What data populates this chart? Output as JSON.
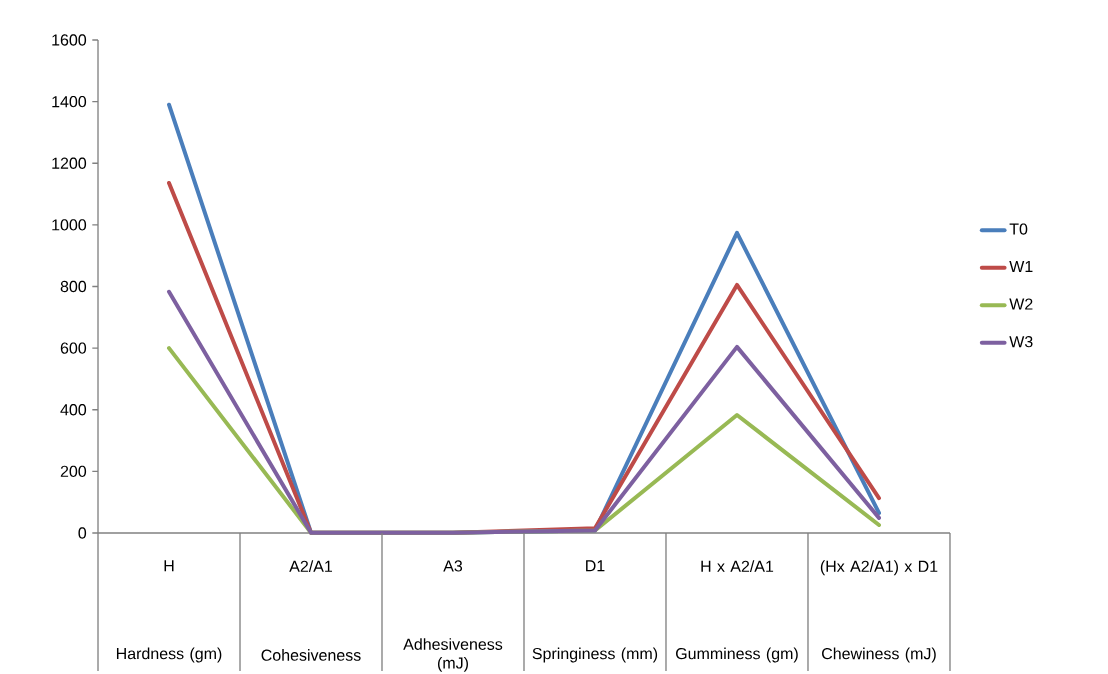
{
  "chart_data": {
    "type": "line",
    "categories": [
      "H",
      "A2/A1",
      "A3",
      "D1",
      "H x A2/A1",
      "(Hx A2/A1) x D1"
    ],
    "series": [
      {
        "name": "T0",
        "color": "#4a7ebb",
        "values": [
          1390,
          1,
          1,
          8,
          974,
          65
        ]
      },
      {
        "name": "W1",
        "color": "#be4b48",
        "values": [
          1136,
          1,
          1,
          15,
          805,
          113
        ]
      },
      {
        "name": "W2",
        "color": "#98b954",
        "values": [
          600,
          1,
          1,
          8,
          383,
          26
        ]
      },
      {
        "name": "W3",
        "color": "#7d60a0",
        "values": [
          783,
          1,
          1,
          8,
          604,
          49
        ]
      }
    ],
    "ylim": [
      0,
      1600
    ],
    "yticks": [
      0,
      200,
      400,
      600,
      800,
      1000,
      1200,
      1400,
      1600
    ],
    "annotations": [
      "Hardness (gm)",
      "Cohesiveness",
      "Adhesiveness (mJ)",
      "Springiness (mm)",
      "Gumminess (gm)",
      "Chewiness (mJ)"
    ],
    "legend": "right",
    "line_style": "solid"
  }
}
